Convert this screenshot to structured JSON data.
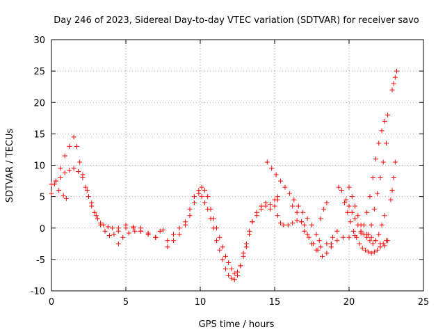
{
  "chart_data": {
    "type": "scatter",
    "title": "Day 246 of 2023, Sidereal Day-to-day VTEC variation (SDTVAR) for receiver savo",
    "xlabel": "GPS time / hours",
    "ylabel": "SDTVAR / TECUs",
    "xlim": [
      0,
      25
    ],
    "ylim": [
      -10,
      30
    ],
    "x_ticks": [
      0,
      5,
      10,
      15,
      20,
      25
    ],
    "y_ticks": [
      -10,
      -5,
      0,
      5,
      10,
      15,
      20,
      25,
      30
    ],
    "grid": true,
    "marker": "+",
    "series": [
      {
        "name": "SDTVAR",
        "color": "#ff0000",
        "segments": [
          {
            "x": [
              0.0,
              0.3,
              0.6,
              0.9,
              1.2,
              1.5,
              1.7,
              1.9,
              2.1,
              2.3,
              2.5,
              2.7,
              2.9,
              3.1,
              3.3,
              3.5,
              3.8,
              4.1,
              4.5,
              5.0,
              5.5,
              6.0,
              6.5,
              7.0
            ],
            "y": [
              5.5,
              7.5,
              9.5,
              11.5,
              13.0,
              14.5,
              13.0,
              10.5,
              8.5,
              6.5,
              5.0,
              3.5,
              2.5,
              1.5,
              0.8,
              0.5,
              0.2,
              0.0,
              0.0,
              0.5,
              0.2,
              0.0,
              -0.8,
              -1.5
            ]
          },
          {
            "x": [
              0.0,
              0.3,
              0.6,
              0.9,
              1.2,
              1.5,
              1.8,
              2.1,
              2.4,
              2.7,
              3.0,
              3.3,
              3.6,
              3.9,
              4.2,
              4.5,
              5.0,
              5.5,
              6.0,
              6.5,
              7.0
            ],
            "y": [
              7.0,
              7.5,
              8.0,
              8.8,
              9.2,
              9.5,
              9.0,
              8.0,
              6.0,
              4.0,
              2.0,
              0.5,
              -0.5,
              -1.2,
              -1.0,
              -0.5,
              0.0,
              0.0,
              -0.5,
              -1.0,
              -1.5
            ]
          },
          {
            "x": [
              0.2,
              0.5,
              0.8,
              1.0
            ],
            "y": [
              7.0,
              6.0,
              5.2,
              4.7
            ]
          },
          {
            "x": [
              4.5,
              4.8,
              5.2,
              5.6,
              6.0,
              6.5,
              7.0
            ],
            "y": [
              -2.5,
              -1.5,
              -0.8,
              -0.5,
              -0.5,
              -1.0,
              -1.5
            ]
          },
          {
            "x": [
              7.3,
              7.5
            ],
            "y": [
              -0.5,
              -0.3
            ]
          },
          {
            "x": [
              7.8,
              8.2,
              8.6,
              9.0,
              9.3,
              9.6,
              9.9,
              10.1,
              10.3,
              10.5,
              10.7,
              10.9,
              11.1,
              11.3,
              11.5,
              11.7,
              11.9,
              12.1,
              12.3,
              12.5,
              12.7,
              12.9,
              13.1,
              13.3,
              13.5,
              13.8,
              14.1,
              14.4,
              14.7,
              15.0,
              15.2
            ],
            "y": [
              -3.0,
              -2.0,
              -1.0,
              0.5,
              2.0,
              4.0,
              6.0,
              6.5,
              6.0,
              5.0,
              3.0,
              1.5,
              0.0,
              -1.5,
              -3.0,
              -4.5,
              -5.5,
              -6.5,
              -7.2,
              -7.0,
              -6.0,
              -4.5,
              -3.0,
              -1.0,
              1.0,
              2.5,
              3.5,
              4.0,
              3.8,
              4.5,
              5.0
            ]
          },
          {
            "x": [
              7.8,
              8.2,
              8.6,
              9.0,
              9.3,
              9.6,
              9.9,
              10.1,
              10.3,
              10.5,
              10.7,
              10.9,
              11.1,
              11.3,
              11.5,
              11.7,
              11.9,
              12.1,
              12.3,
              12.5,
              12.7,
              12.9,
              13.1,
              13.3,
              13.5,
              13.8,
              14.1,
              14.4,
              14.7,
              15.0,
              15.2
            ],
            "y": [
              -2.0,
              -1.0,
              0.0,
              1.0,
              3.0,
              5.0,
              5.5,
              5.0,
              4.0,
              3.0,
              1.5,
              0.0,
              -2.0,
              -3.5,
              -5.0,
              -6.5,
              -7.5,
              -8.0,
              -8.2,
              -7.5,
              -6.0,
              -4.0,
              -2.5,
              -0.5,
              1.0,
              2.0,
              3.0,
              3.5,
              3.0,
              3.5,
              4.5
            ]
          },
          {
            "x": [
              14.5,
              14.8,
              15.1,
              15.4,
              15.7,
              16.0,
              16.3,
              16.6,
              16.9,
              17.2,
              17.5,
              17.8,
              18.0
            ],
            "y": [
              10.5,
              9.5,
              8.5,
              7.5,
              6.5,
              5.5,
              4.5,
              3.5,
              2.5,
              1.5,
              0.5,
              -1.0,
              -2.0
            ]
          },
          {
            "x": [
              15.2,
              15.4,
              15.6,
              15.9,
              16.2,
              16.5,
              16.8,
              17.0,
              17.2,
              17.5,
              17.8,
              18.1,
              18.5,
              18.9,
              19.2
            ],
            "y": [
              2.0,
              0.8,
              0.5,
              0.5,
              0.8,
              1.2,
              1.0,
              0.5,
              -1.0,
              -2.5,
              -3.5,
              -3.0,
              -2.5,
              -1.5,
              -0.5
            ]
          },
          {
            "x": [
              16.2,
              16.5,
              16.8,
              17.0,
              17.3,
              17.6,
              17.9,
              18.2,
              18.5,
              18.8
            ],
            "y": [
              3.5,
              2.5,
              1.0,
              -0.5,
              -1.5,
              -2.5,
              -3.5,
              -4.5,
              -4.0,
              -3.0
            ]
          },
          {
            "x": [
              18.1,
              18.3,
              18.5
            ],
            "y": [
              1.5,
              3.0,
              4.0
            ]
          },
          {
            "x": [
              18.8,
              19.2,
              19.6,
              20.0,
              20.4,
              20.8,
              21.2,
              21.5,
              21.8,
              22.1,
              22.4,
              22.6
            ],
            "y": [
              -2.5,
              -2.0,
              -1.5,
              -1.5,
              -1.2,
              -0.8,
              -1.0,
              -1.5,
              -2.0,
              -2.5,
              -2.8,
              -2.0
            ]
          },
          {
            "x": [
              19.3,
              19.5,
              19.7,
              19.9,
              20.1,
              20.3,
              20.5,
              20.7,
              20.9,
              21.1,
              21.3,
              21.5,
              21.7,
              21.9,
              22.1,
              22.3,
              22.5
            ],
            "y": [
              6.5,
              6.0,
              4.0,
              2.5,
              1.0,
              -0.5,
              -1.5,
              -2.5,
              -3.2,
              -3.5,
              -3.8,
              -4.0,
              -3.8,
              -3.5,
              -3.0,
              -2.5,
              -2.0
            ]
          },
          {
            "x": [
              19.8,
              20.0,
              20.2,
              20.4,
              20.6,
              20.8,
              21.0,
              21.2,
              21.4,
              21.6
            ],
            "y": [
              4.5,
              3.5,
              2.5,
              1.5,
              0.5,
              -0.5,
              -1.0,
              -1.5,
              -2.0,
              -2.5
            ]
          },
          {
            "x": [
              20.0,
              20.2,
              20.4,
              20.6,
              20.8
            ],
            "y": [
              6.5,
              5.0,
              3.5,
              2.0,
              0.5
            ]
          },
          {
            "x": [
              21.0,
              21.2,
              21.4,
              21.6,
              21.8,
              22.0,
              22.2,
              22.4,
              22.6
            ],
            "y": [
              0.5,
              2.5,
              5.0,
              8.0,
              11.0,
              13.5,
              15.5,
              17.0,
              18.0
            ]
          },
          {
            "x": [
              21.3,
              21.5,
              21.7,
              21.9,
              22.1,
              22.3,
              22.5
            ],
            "y": [
              -1.0,
              0.5,
              3.0,
              5.5,
              8.0,
              10.5,
              13.5
            ]
          },
          {
            "x": [
              21.8,
              22.0,
              22.2,
              22.4
            ],
            "y": [
              -2.0,
              -1.0,
              0.5,
              2.0
            ]
          },
          {
            "x": [
              22.8,
              22.9,
              23.0,
              23.1
            ],
            "y": [
              4.5,
              6.0,
              8.0,
              10.5
            ]
          },
          {
            "x": [
              22.9,
              23.0,
              23.1,
              23.2
            ],
            "y": [
              22.0,
              23.0,
              24.0,
              25.0
            ]
          }
        ]
      }
    ]
  }
}
